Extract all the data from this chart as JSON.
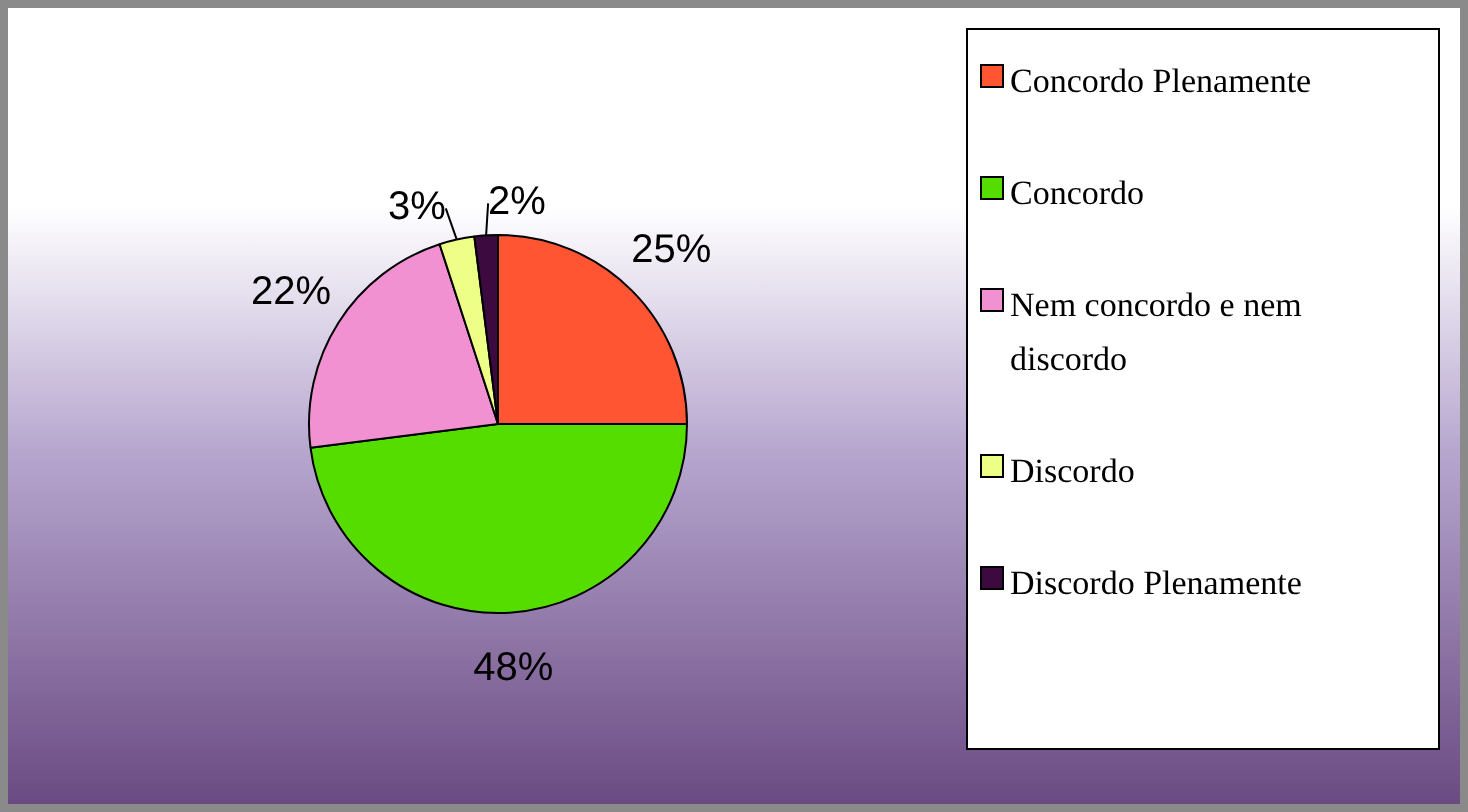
{
  "chart_data": {
    "type": "pie",
    "categories": [
      "Concordo Plenamente",
      "Concordo",
      "Nem concordo e nem discordo",
      "Discordo",
      "Discordo Plenamente"
    ],
    "values": [
      25,
      48,
      22,
      3,
      2
    ],
    "colors": [
      "#ff5533",
      "#55dd00",
      "#f291d1",
      "#eeff88",
      "#3d0a40"
    ],
    "value_labels": [
      "25%",
      "48%",
      "22%",
      "3%",
      "2%"
    ],
    "legend": "right"
  }
}
